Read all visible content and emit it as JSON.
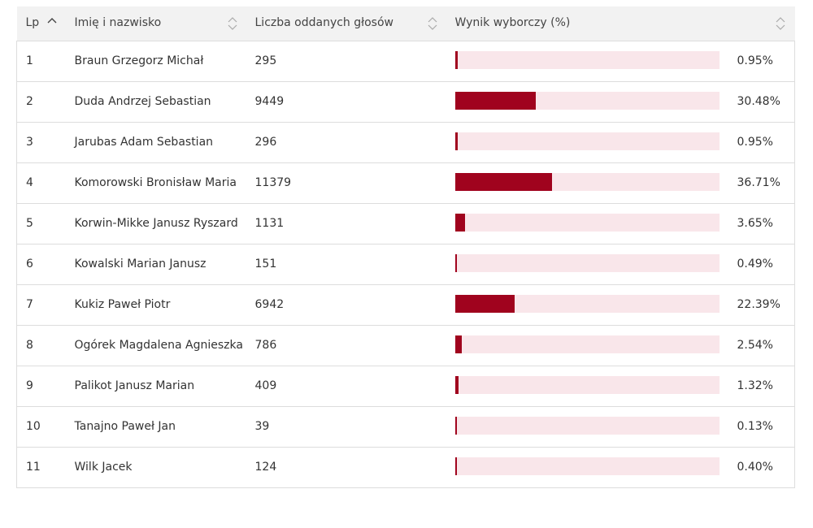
{
  "table": {
    "headers": {
      "lp": "Lp",
      "name": "Imię i nazwisko",
      "votes": "Liczba oddanych głosów",
      "result": "Wynik wyborczy (%)"
    },
    "sort": {
      "lp": "ascending",
      "name": "none",
      "votes": "none",
      "result": "none"
    },
    "colors": {
      "bar_fill": "#a0031e",
      "bar_track": "#f9e6ea",
      "header_bg": "#f2f2f2"
    },
    "rows": [
      {
        "lp": "1",
        "name": "Braun Grzegorz Michał",
        "votes": "295",
        "pct_text": "0.95%",
        "pct": 0.95
      },
      {
        "lp": "2",
        "name": "Duda Andrzej Sebastian",
        "votes": "9449",
        "pct_text": "30.48%",
        "pct": 30.48
      },
      {
        "lp": "3",
        "name": "Jarubas Adam Sebastian",
        "votes": "296",
        "pct_text": "0.95%",
        "pct": 0.95
      },
      {
        "lp": "4",
        "name": "Komorowski Bronisław Maria",
        "votes": "11379",
        "pct_text": "36.71%",
        "pct": 36.71
      },
      {
        "lp": "5",
        "name": "Korwin-Mikke Janusz Ryszard",
        "votes": "1131",
        "pct_text": "3.65%",
        "pct": 3.65
      },
      {
        "lp": "6",
        "name": "Kowalski Marian Janusz",
        "votes": "151",
        "pct_text": "0.49%",
        "pct": 0.49
      },
      {
        "lp": "7",
        "name": "Kukiz Paweł Piotr",
        "votes": "6942",
        "pct_text": "22.39%",
        "pct": 22.39
      },
      {
        "lp": "8",
        "name": "Ogórek Magdalena Agnieszka",
        "votes": "786",
        "pct_text": "2.54%",
        "pct": 2.54
      },
      {
        "lp": "9",
        "name": "Palikot Janusz Marian",
        "votes": "409",
        "pct_text": "1.32%",
        "pct": 1.32
      },
      {
        "lp": "10",
        "name": "Tanajno Paweł Jan",
        "votes": "39",
        "pct_text": "0.13%",
        "pct": 0.13
      },
      {
        "lp": "11",
        "name": "Wilk Jacek",
        "votes": "124",
        "pct_text": "0.40%",
        "pct": 0.4
      }
    ]
  }
}
